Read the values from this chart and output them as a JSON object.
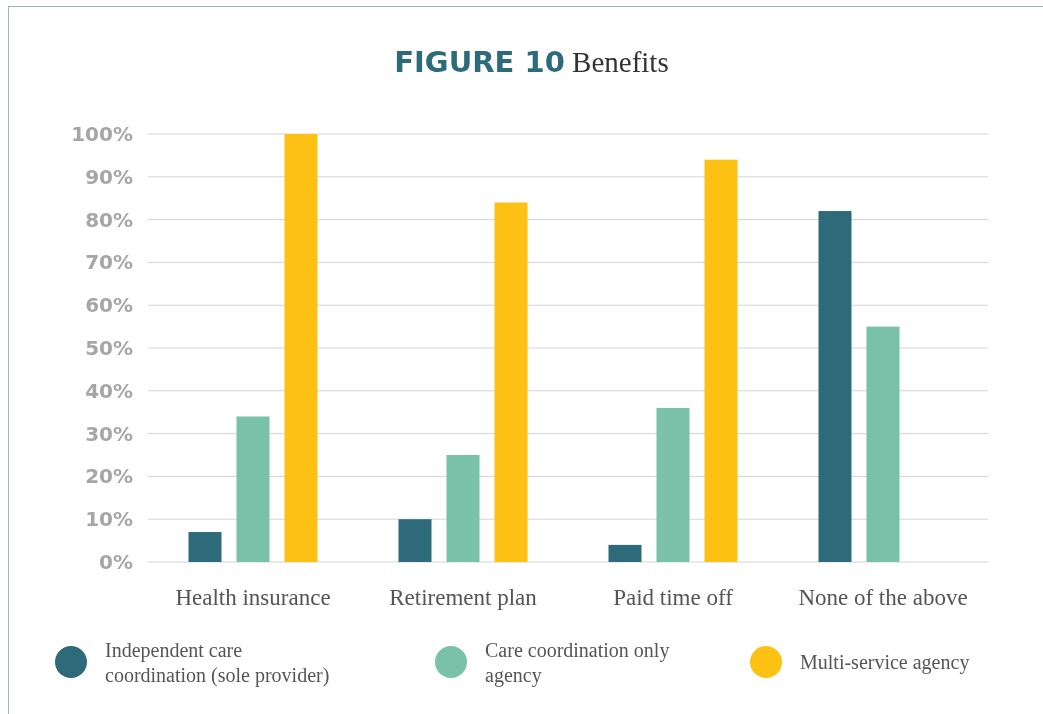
{
  "chart_data": {
    "type": "bar",
    "title": "FIGURE 10 Benefits",
    "categories": [
      "Health insurance",
      "Retirement plan",
      "Paid time off",
      "None of the above"
    ],
    "series": [
      {
        "name": "Independent care coordination (sole provider)",
        "color": "#2e6b7a",
        "values": [
          7,
          10,
          4,
          82
        ]
      },
      {
        "name": "Care coordination only agency",
        "color": "#79c1a8",
        "values": [
          34,
          25,
          36,
          55
        ]
      },
      {
        "name": "Multi-service agency",
        "color": "#fdc113",
        "values": [
          100,
          84,
          94,
          0
        ]
      }
    ],
    "ylim": [
      0,
      100
    ],
    "yticks": [
      {
        "value": 0,
        "label": "0%"
      },
      {
        "value": 10,
        "label": "10%"
      },
      {
        "value": 20,
        "label": "20%"
      },
      {
        "value": 30,
        "label": "30%"
      },
      {
        "value": 40,
        "label": "40%"
      },
      {
        "value": 50,
        "label": "50%"
      },
      {
        "value": 60,
        "label": "60%"
      },
      {
        "value": 70,
        "label": "70%"
      },
      {
        "value": 80,
        "label": "80%"
      },
      {
        "value": 90,
        "label": "90%"
      },
      {
        "value": 100,
        "label": "100%"
      }
    ],
    "grid": "y",
    "legend": "bottom"
  }
}
